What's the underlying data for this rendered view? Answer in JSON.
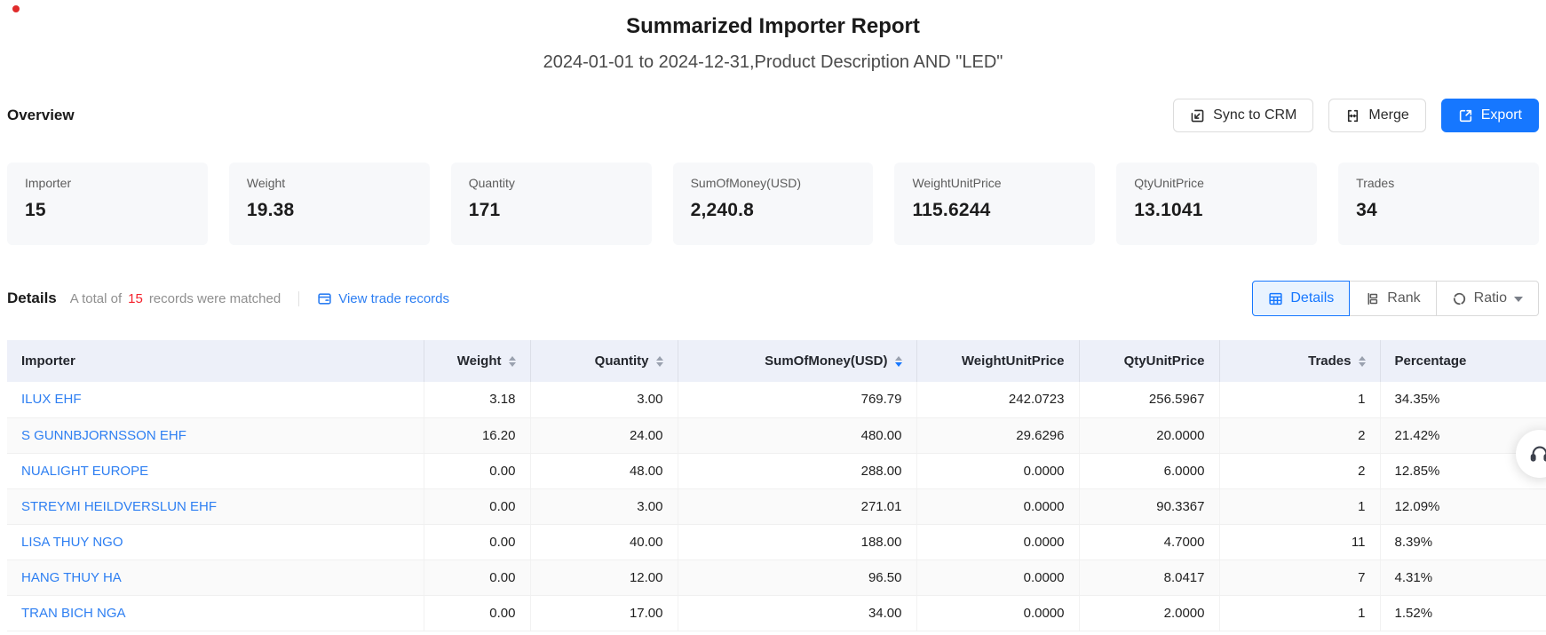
{
  "page": {
    "title": "Summarized Importer Report",
    "subtitle": "2024-01-01 to 2024-12-31,Product Description AND \"LED\""
  },
  "overview": {
    "heading": "Overview",
    "actions": {
      "sync": "Sync to CRM",
      "merge": "Merge",
      "export": "Export"
    },
    "cards": [
      {
        "label": "Importer",
        "value": "15"
      },
      {
        "label": "Weight",
        "value": "19.38"
      },
      {
        "label": "Quantity",
        "value": "171"
      },
      {
        "label": "SumOfMoney(USD)",
        "value": "2,240.8"
      },
      {
        "label": "WeightUnitPrice",
        "value": "115.6244"
      },
      {
        "label": "QtyUnitPrice",
        "value": "13.1041"
      },
      {
        "label": "Trades",
        "value": "34"
      }
    ]
  },
  "details": {
    "heading": "Details",
    "summary_prefix": "A total of",
    "summary_count": "15",
    "summary_suffix": "records were matched",
    "view_link": "View trade records",
    "tabs": [
      {
        "label": "Details",
        "active": true
      },
      {
        "label": "Rank",
        "active": false
      },
      {
        "label": "Ratio",
        "active": false,
        "dropdown": true
      }
    ]
  },
  "table": {
    "columns": [
      {
        "label": "Importer",
        "align": "left",
        "sortable": false
      },
      {
        "label": "Weight",
        "align": "right",
        "sortable": true
      },
      {
        "label": "Quantity",
        "align": "right",
        "sortable": true
      },
      {
        "label": "SumOfMoney(USD)",
        "align": "right",
        "sortable": true,
        "sorted": "desc"
      },
      {
        "label": "WeightUnitPrice",
        "align": "right",
        "sortable": false
      },
      {
        "label": "QtyUnitPrice",
        "align": "right",
        "sortable": false
      },
      {
        "label": "Trades",
        "align": "right",
        "sortable": true
      },
      {
        "label": "Percentage",
        "align": "left",
        "sortable": false
      }
    ],
    "rows": [
      [
        "ILUX EHF",
        "3.18",
        "3.00",
        "769.79",
        "242.0723",
        "256.5967",
        "1",
        "34.35%"
      ],
      [
        "S GUNNBJORNSSON EHF",
        "16.20",
        "24.00",
        "480.00",
        "29.6296",
        "20.0000",
        "2",
        "21.42%"
      ],
      [
        "NUALIGHT EUROPE",
        "0.00",
        "48.00",
        "288.00",
        "0.0000",
        "6.0000",
        "2",
        "12.85%"
      ],
      [
        "STREYMI HEILDVERSLUN EHF",
        "0.00",
        "3.00",
        "271.01",
        "0.0000",
        "90.3367",
        "1",
        "12.09%"
      ],
      [
        "LISA THUY NGO",
        "0.00",
        "40.00",
        "188.00",
        "0.0000",
        "4.7000",
        "11",
        "8.39%"
      ],
      [
        "HANG THUY HA",
        "0.00",
        "12.00",
        "96.50",
        "0.0000",
        "8.0417",
        "7",
        "4.31%"
      ],
      [
        "TRAN BICH NGA",
        "0.00",
        "17.00",
        "34.00",
        "0.0000",
        "2.0000",
        "1",
        "1.52%"
      ]
    ]
  },
  "colors": {
    "accent": "#1677ff",
    "link": "#2e7ff2",
    "count_red": "#f5222d",
    "table_header_bg": "#edf0f9",
    "card_bg": "#f7f8fa"
  }
}
